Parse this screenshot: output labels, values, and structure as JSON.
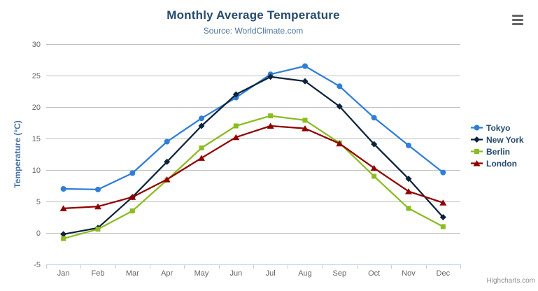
{
  "chart_data": {
    "type": "line",
    "title": "Monthly Average Temperature",
    "subtitle": "Source: WorldClimate.com",
    "categories": [
      "Jan",
      "Feb",
      "Mar",
      "Apr",
      "May",
      "Jun",
      "Jul",
      "Aug",
      "Sep",
      "Oct",
      "Nov",
      "Dec"
    ],
    "xlabel": "",
    "ylabel": "Temperature (°C)",
    "ylim": [
      -5,
      30
    ],
    "yticks": [
      30,
      25,
      20,
      15,
      10,
      5,
      0,
      -5
    ],
    "grid": true,
    "legend_position": "right",
    "series": [
      {
        "name": "Tokyo",
        "marker": "circle",
        "color": "#2f7ed8",
        "values": [
          7.0,
          6.9,
          9.5,
          14.5,
          18.2,
          21.5,
          25.2,
          26.5,
          23.3,
          18.3,
          13.9,
          9.6
        ]
      },
      {
        "name": "New York",
        "marker": "diamond",
        "color": "#0d233a",
        "values": [
          -0.2,
          0.8,
          5.7,
          11.3,
          17.0,
          22.0,
          24.8,
          24.1,
          20.1,
          14.1,
          8.6,
          2.5
        ]
      },
      {
        "name": "Berlin",
        "marker": "square",
        "color": "#8bbc21",
        "values": [
          -0.9,
          0.6,
          3.5,
          8.4,
          13.5,
          17.0,
          18.6,
          17.9,
          14.3,
          9.0,
          3.9,
          1.0
        ]
      },
      {
        "name": "London",
        "marker": "triangle",
        "color": "#910000",
        "values": [
          3.9,
          4.2,
          5.7,
          8.5,
          11.9,
          15.2,
          17.0,
          16.6,
          14.2,
          10.3,
          6.6,
          4.8
        ]
      }
    ]
  },
  "credits": {
    "label": "Highcharts.com"
  },
  "export_menu": {
    "icon": "hamburger-menu-icon"
  },
  "colors": {
    "background": "#ffffff",
    "title": "#274b6d",
    "subtitle": "#4d759e",
    "y_axis_title": "#4572a7",
    "axis_label": "#666666",
    "gridline": "#c0c0c0",
    "axis_line": "#c0d0e0",
    "legend_text": "#274b6d",
    "credits_text": "#909090",
    "export_icon": "#666666"
  }
}
